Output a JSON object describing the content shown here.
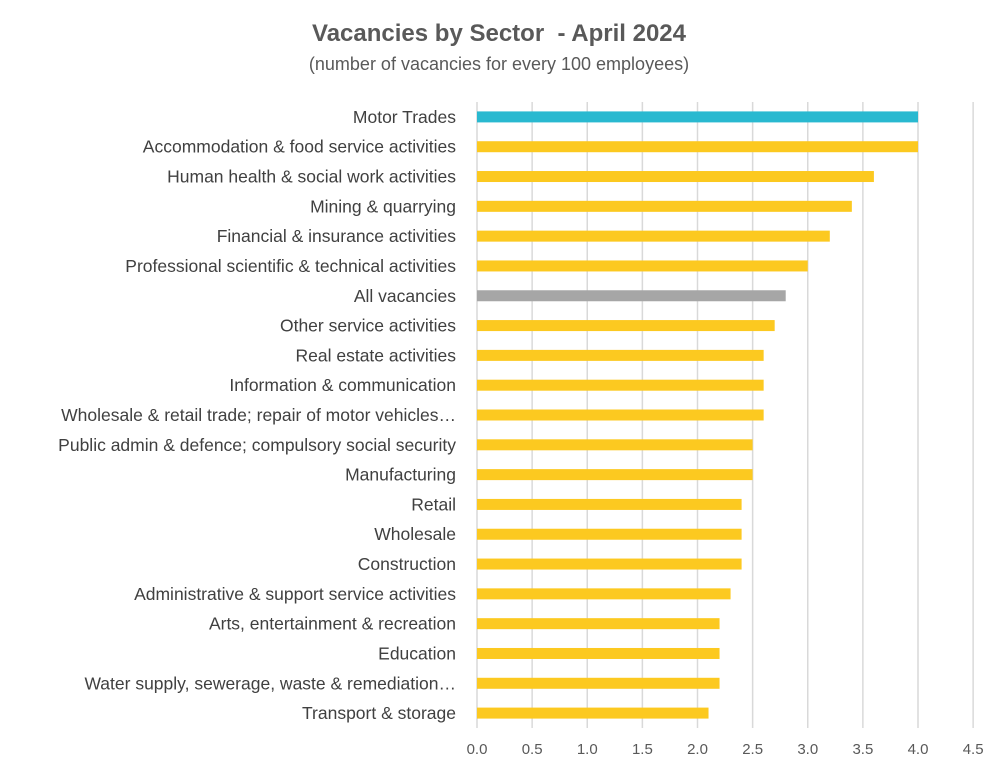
{
  "chart_data": {
    "type": "bar",
    "orientation": "horizontal",
    "title": "Vacancies by Sector  - April 2024",
    "subtitle": "(number of vacancies for every 100 employees)",
    "xlabel": "",
    "ylabel": "",
    "xlim": [
      0,
      4.5
    ],
    "grid": true,
    "ticks": [
      "0.0",
      "0.5",
      "1.0",
      "1.5",
      "2.0",
      "2.5",
      "3.0",
      "3.5",
      "4.0",
      "4.5"
    ],
    "categories": [
      "Motor Trades",
      "Accommodation & food service activities",
      "Human health & social work activities",
      "Mining & quarrying",
      "Financial & insurance activities",
      "Professional scientific & technical activities",
      "All vacancies",
      "Other service activities",
      "Real estate activities",
      "Information & communication",
      "Wholesale & retail trade; repair of motor vehicles…",
      "Public admin & defence; compulsory social security",
      "Manufacturing",
      "Retail",
      "Wholesale",
      "Construction",
      "Administrative & support service activities",
      "Arts, entertainment & recreation",
      "Education",
      "Water supply, sewerage, waste & remediation…",
      "Transport & storage"
    ],
    "values": [
      4.0,
      4.0,
      3.6,
      3.4,
      3.2,
      3.0,
      2.8,
      2.7,
      2.6,
      2.6,
      2.6,
      2.5,
      2.5,
      2.4,
      2.4,
      2.4,
      2.3,
      2.2,
      2.2,
      2.2,
      2.1
    ],
    "colors": {
      "highlight": "#29B9D0",
      "default": "#FCC920",
      "average": "#A6A6A6"
    },
    "highlight_index": 0,
    "average_index": 6
  }
}
